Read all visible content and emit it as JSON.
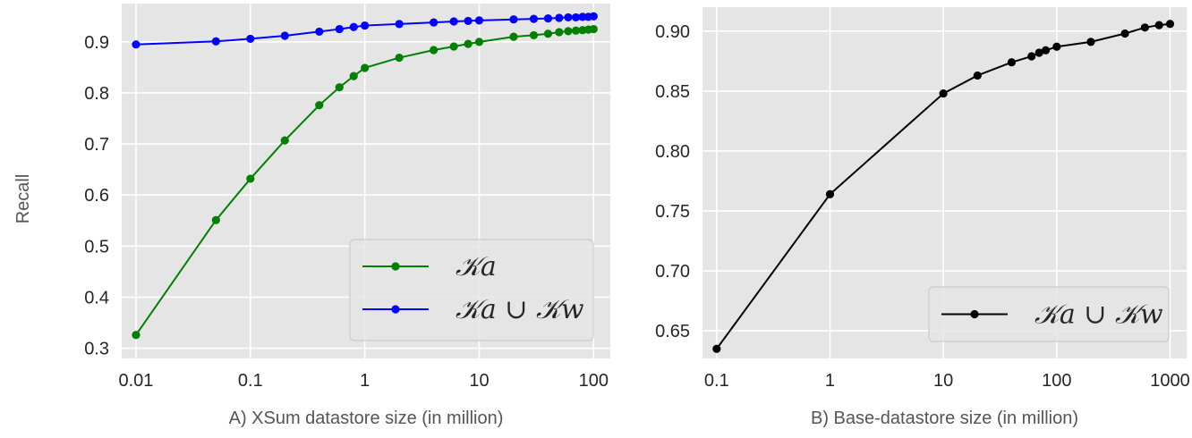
{
  "chart_data": [
    {
      "type": "line",
      "xlabel": "A) XSum datastore size (in million)",
      "ylabel": "Recall",
      "xscale": "log",
      "xlim": [
        0.0075,
        140
      ],
      "ylim": [
        0.28,
        0.975
      ],
      "grid": true,
      "legend_position": "bottom-right",
      "xticks": [
        0.01,
        0.1,
        1,
        10,
        100
      ],
      "xtick_labels": [
        "0.01",
        "0.1",
        "1",
        "10",
        "100"
      ],
      "yticks": [
        0.3,
        0.4,
        0.5,
        0.6,
        0.7,
        0.8,
        0.9
      ],
      "ytick_labels": [
        "0.3",
        "0.4",
        "0.5",
        "0.6",
        "0.7",
        "0.8",
        "0.9"
      ],
      "series": [
        {
          "name": "𝒦a",
          "color": "#008000",
          "x": [
            0.01,
            0.05,
            0.1,
            0.2,
            0.4,
            0.6,
            0.8,
            1,
            2,
            4,
            6,
            8,
            10,
            20,
            30,
            40,
            50,
            60,
            70,
            80,
            90,
            100
          ],
          "y": [
            0.326,
            0.551,
            0.632,
            0.707,
            0.776,
            0.811,
            0.833,
            0.849,
            0.869,
            0.884,
            0.891,
            0.896,
            0.9,
            0.91,
            0.913,
            0.916,
            0.919,
            0.921,
            0.922,
            0.923,
            0.924,
            0.925
          ]
        },
        {
          "name": "𝒦a ∪ 𝒦w",
          "color": "#0000ff",
          "x": [
            0.01,
            0.05,
            0.1,
            0.2,
            0.4,
            0.6,
            0.8,
            1,
            2,
            4,
            6,
            8,
            10,
            20,
            30,
            40,
            50,
            60,
            70,
            80,
            90,
            100
          ],
          "y": [
            0.895,
            0.901,
            0.906,
            0.912,
            0.92,
            0.925,
            0.929,
            0.932,
            0.935,
            0.938,
            0.94,
            0.941,
            0.942,
            0.944,
            0.945,
            0.946,
            0.947,
            0.948,
            0.948,
            0.949,
            0.949,
            0.95
          ]
        }
      ]
    },
    {
      "type": "line",
      "xlabel": "B) Base-datastore size (in million)",
      "ylabel": "",
      "xscale": "log",
      "xlim": [
        0.075,
        1400
      ],
      "ylim": [
        0.627,
        0.92
      ],
      "grid": true,
      "legend_position": "bottom-right",
      "xticks": [
        0.1,
        1,
        10,
        100,
        1000
      ],
      "xtick_labels": [
        "0.1",
        "1",
        "10",
        "100",
        "1000"
      ],
      "yticks": [
        0.65,
        0.7,
        0.75,
        0.8,
        0.85,
        0.9
      ],
      "ytick_labels": [
        "0.65",
        "0.70",
        "0.75",
        "0.80",
        "0.85",
        "0.90"
      ],
      "series": [
        {
          "name": "𝒦a ∪ 𝒦w",
          "color": "#000000",
          "x": [
            0.1,
            1,
            10,
            20,
            40,
            60,
            70,
            80,
            100,
            200,
            400,
            600,
            800,
            1000
          ],
          "y": [
            0.635,
            0.764,
            0.848,
            0.863,
            0.874,
            0.879,
            0.882,
            0.884,
            0.887,
            0.891,
            0.898,
            0.903,
            0.905,
            0.906
          ]
        }
      ]
    }
  ]
}
